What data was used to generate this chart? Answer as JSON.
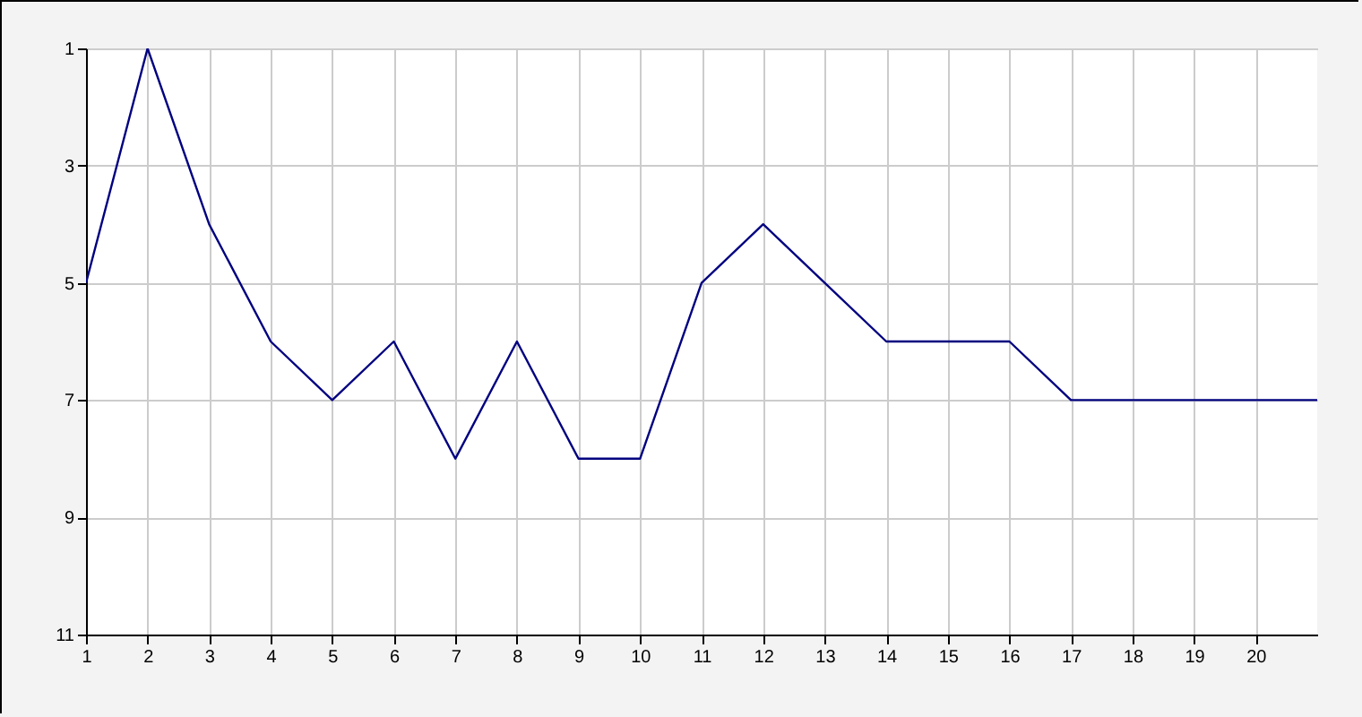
{
  "chart_data": {
    "type": "line",
    "x": [
      1,
      2,
      3,
      4,
      5,
      6,
      7,
      8,
      9,
      10,
      11,
      12,
      13,
      14,
      15,
      16,
      17,
      21
    ],
    "series": [
      {
        "color": "#000080",
        "values": [
          5,
          1,
          4,
          6,
          7,
          6,
          8,
          6,
          8,
          8,
          5,
          4,
          5,
          6,
          6,
          6,
          7,
          7
        ]
      }
    ],
    "xlim": [
      1,
      21
    ],
    "xticks": [
      1,
      2,
      3,
      4,
      5,
      6,
      7,
      8,
      9,
      10,
      11,
      12,
      13,
      14,
      15,
      16,
      17,
      18,
      19,
      20
    ],
    "ylim": [
      11,
      1
    ],
    "yticks": [
      1,
      3,
      5,
      7,
      9,
      11
    ],
    "grid": true,
    "marker": "none",
    "line_style": "solid"
  }
}
